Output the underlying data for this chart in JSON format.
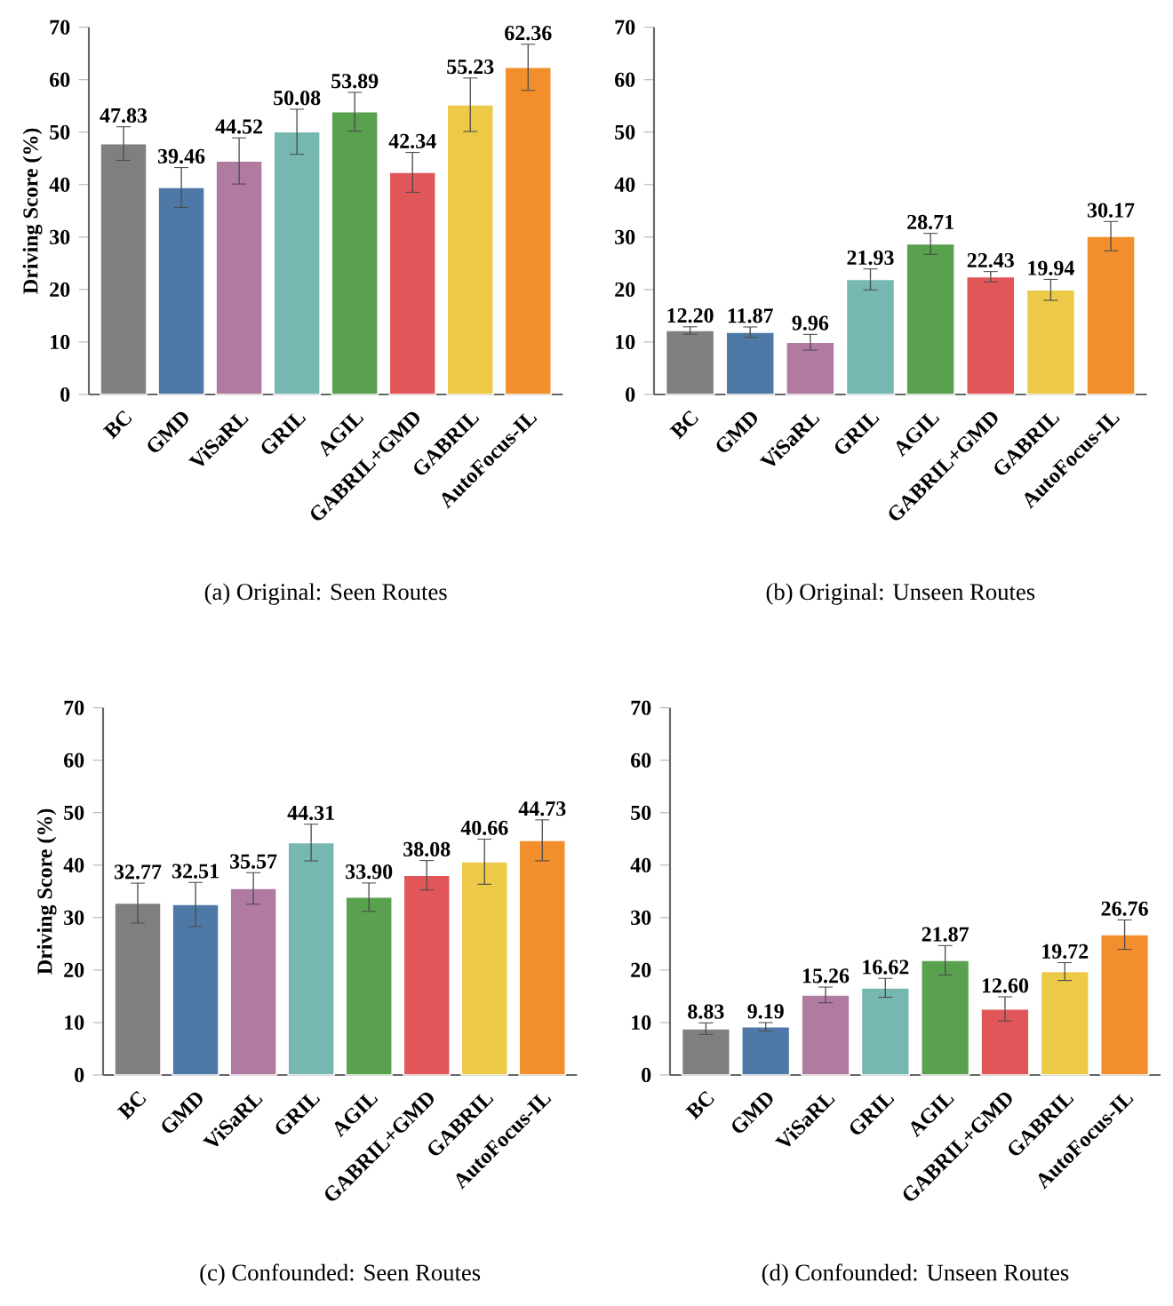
{
  "chart_data": [
    {
      "type": "bar",
      "title": "(a) Original: Seen Routes",
      "ylabel": "Driving Score (%)",
      "categories": [
        "BC",
        "GMD",
        "ViSaRL",
        "GRIL",
        "AGIL",
        "GABRIL+GMD",
        "GABRIL",
        "AutoFocus-IL"
      ],
      "values": [
        47.83,
        39.46,
        44.52,
        50.08,
        53.89,
        42.34,
        55.23,
        62.36
      ],
      "errors": [
        3.2,
        3.8,
        4.4,
        4.3,
        3.7,
        3.8,
        5.1,
        4.4
      ],
      "value_labels": [
        "47.83",
        "39.46",
        "44.52",
        "50.08",
        "53.89",
        "42.34",
        "55.23",
        "62.36"
      ],
      "colors": [
        "#7f7f7f",
        "#4e79a7",
        "#b07aa1",
        "#76b7b2",
        "#59a14f",
        "#e15759",
        "#edc948",
        "#f28e2b"
      ],
      "ylim": [
        0,
        70
      ],
      "yticks": [
        0,
        10,
        20,
        30,
        40,
        50,
        60,
        70
      ]
    },
    {
      "type": "bar",
      "title": "(b) Original: Unseen Routes",
      "categories": [
        "BC",
        "GMD",
        "ViSaRL",
        "GRIL",
        "AGIL",
        "GABRIL+GMD",
        "GABRIL",
        "AutoFocus-IL"
      ],
      "values": [
        12.2,
        11.87,
        9.96,
        21.93,
        28.71,
        22.43,
        19.94,
        30.17
      ],
      "errors": [
        0.7,
        1.0,
        1.5,
        2.0,
        2.0,
        1.0,
        2.0,
        2.8
      ],
      "value_labels": [
        "12.20",
        "11.87",
        "9.96",
        "21.93",
        "28.71",
        "22.43",
        "19.94",
        "30.17"
      ],
      "colors": [
        "#7f7f7f",
        "#4e79a7",
        "#b07aa1",
        "#76b7b2",
        "#59a14f",
        "#e15759",
        "#edc948",
        "#f28e2b"
      ],
      "ylim": [
        0,
        70
      ],
      "yticks": [
        0,
        10,
        20,
        30,
        40,
        50,
        60,
        70
      ]
    },
    {
      "type": "bar",
      "title": "(c) Confounded: Seen Routes",
      "ylabel": "Driving Score (%)",
      "categories": [
        "BC",
        "GMD",
        "ViSaRL",
        "GRIL",
        "AGIL",
        "GABRIL+GMD",
        "GABRIL",
        "AutoFocus-IL"
      ],
      "values": [
        32.77,
        32.51,
        35.57,
        44.31,
        33.9,
        38.08,
        40.66,
        44.73
      ],
      "errors": [
        3.8,
        4.2,
        3.0,
        3.5,
        2.7,
        2.8,
        4.3,
        3.9
      ],
      "value_labels": [
        "32.77",
        "32.51",
        "35.57",
        "44.31",
        "33.90",
        "38.08",
        "40.66",
        "44.73"
      ],
      "colors": [
        "#7f7f7f",
        "#4e79a7",
        "#b07aa1",
        "#76b7b2",
        "#59a14f",
        "#e15759",
        "#edc948",
        "#f28e2b"
      ],
      "ylim": [
        0,
        70
      ],
      "yticks": [
        0,
        10,
        20,
        30,
        40,
        50,
        60,
        70
      ]
    },
    {
      "type": "bar",
      "title": "(d) Confounded: Unseen Routes",
      "categories": [
        "BC",
        "GMD",
        "ViSaRL",
        "GRIL",
        "AGIL",
        "GABRIL+GMD",
        "GABRIL",
        "AutoFocus-IL"
      ],
      "values": [
        8.83,
        9.19,
        15.26,
        16.62,
        21.87,
        12.6,
        19.72,
        26.76
      ],
      "errors": [
        1.1,
        0.8,
        1.5,
        1.8,
        2.8,
        2.3,
        1.7,
        2.8
      ],
      "value_labels": [
        "8.83",
        "9.19",
        "15.26",
        "16.62",
        "21.87",
        "12.60",
        "19.72",
        "26.76"
      ],
      "colors": [
        "#7f7f7f",
        "#4e79a7",
        "#b07aa1",
        "#76b7b2",
        "#59a14f",
        "#e15759",
        "#edc948",
        "#f28e2b"
      ],
      "ylim": [
        0,
        70
      ],
      "yticks": [
        0,
        10,
        20,
        30,
        40,
        50,
        60,
        70
      ]
    }
  ]
}
